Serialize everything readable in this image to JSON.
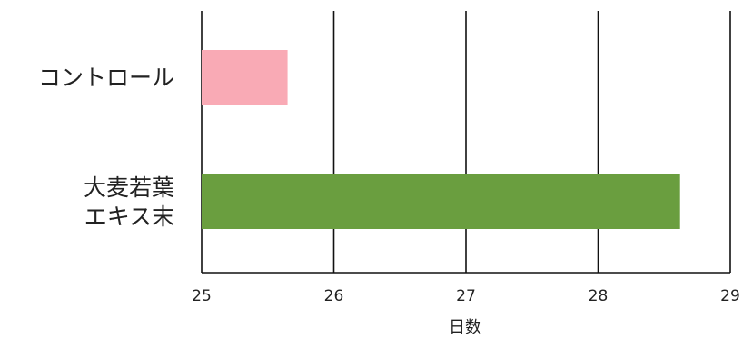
{
  "chart_data": {
    "type": "bar",
    "orientation": "horizontal",
    "title": "",
    "xlabel": "日数",
    "ylabel": "",
    "xlim": [
      25,
      29
    ],
    "x_ticks": [
      "25",
      "26",
      "27",
      "28",
      "29"
    ],
    "grid": "vertical",
    "categories": [
      {
        "lines": [
          "コントロール"
        ]
      },
      {
        "lines": [
          "大麦若葉",
          "エキス末"
        ]
      }
    ],
    "values": [
      25.65,
      28.62
    ],
    "colors": [
      "#f9aab5",
      "#6a9e3f"
    ]
  }
}
